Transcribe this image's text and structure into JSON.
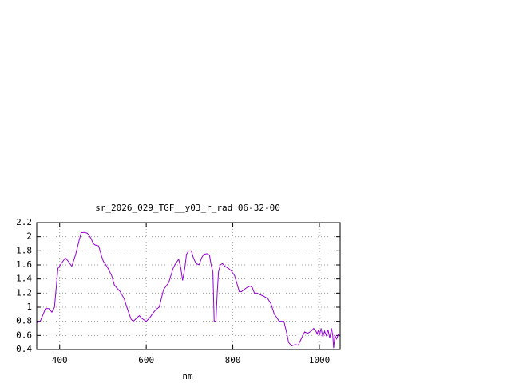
{
  "chart_data": {
    "type": "line",
    "title": "sr_2026_029_TGF__y03_r_rad 06-32-00",
    "x_label": "nm",
    "xlim": [
      347,
      1048
    ],
    "xticks": [
      400,
      600,
      800,
      1000
    ],
    "ylim": [
      0.4,
      2.2
    ],
    "yticks": [
      0.4,
      0.6,
      0.8,
      1,
      1.2,
      1.4,
      1.6,
      1.8,
      2,
      2.2
    ],
    "grid": true,
    "series": [
      {
        "color": "#9400d3",
        "x": [
          347,
          355,
          362,
          367,
          375,
          382,
          388,
          396,
          405,
          413,
          420,
          428,
          437,
          445,
          450,
          457,
          464,
          472,
          478,
          483,
          490,
          497,
          501,
          510,
          520,
          526,
          531,
          540,
          549,
          558,
          565,
          570,
          577,
          584,
          590,
          600,
          608,
          616,
          623,
          630,
          636,
          640,
          646,
          652,
          657,
          662,
          668,
          675,
          680,
          684,
          689,
          693,
          698,
          704,
          709,
          715,
          722,
          728,
          733,
          740,
          746,
          750,
          754,
          757,
          761,
          764,
          767,
          771,
          776,
          782,
          790,
          796,
          804,
          809,
          815,
          820,
          826,
          833,
          840,
          845,
          850,
          856,
          862,
          870,
          881,
          888,
          896,
          902,
          907,
          912,
          918,
          924,
          929,
          936,
          944,
          951,
          958,
          966,
          973,
          981,
          987,
          992,
          995,
          998,
          1000,
          1004,
          1008,
          1012,
          1016,
          1020,
          1024,
          1028,
          1031,
          1033,
          1036,
          1040,
          1044,
          1048
        ],
        "values": [
          0.78,
          0.8,
          0.9,
          0.98,
          0.98,
          0.93,
          1.0,
          1.55,
          1.63,
          1.7,
          1.65,
          1.58,
          1.75,
          1.95,
          2.06,
          2.06,
          2.05,
          1.98,
          1.9,
          1.88,
          1.87,
          1.72,
          1.65,
          1.57,
          1.45,
          1.32,
          1.28,
          1.22,
          1.12,
          0.95,
          0.83,
          0.8,
          0.84,
          0.88,
          0.84,
          0.8,
          0.85,
          0.92,
          0.97,
          1.0,
          1.15,
          1.25,
          1.3,
          1.35,
          1.45,
          1.55,
          1.62,
          1.68,
          1.55,
          1.38,
          1.55,
          1.75,
          1.8,
          1.8,
          1.7,
          1.62,
          1.6,
          1.7,
          1.75,
          1.76,
          1.74,
          1.6,
          1.5,
          0.8,
          0.8,
          1.2,
          1.5,
          1.6,
          1.62,
          1.58,
          1.55,
          1.52,
          1.45,
          1.35,
          1.22,
          1.22,
          1.25,
          1.28,
          1.3,
          1.28,
          1.2,
          1.2,
          1.18,
          1.16,
          1.12,
          1.05,
          0.9,
          0.85,
          0.8,
          0.8,
          0.8,
          0.65,
          0.5,
          0.45,
          0.47,
          0.46,
          0.55,
          0.65,
          0.63,
          0.66,
          0.7,
          0.66,
          0.62,
          0.68,
          0.6,
          0.7,
          0.58,
          0.66,
          0.6,
          0.68,
          0.56,
          0.7,
          0.6,
          0.42,
          0.6,
          0.55,
          0.62,
          0.62
        ]
      }
    ]
  }
}
